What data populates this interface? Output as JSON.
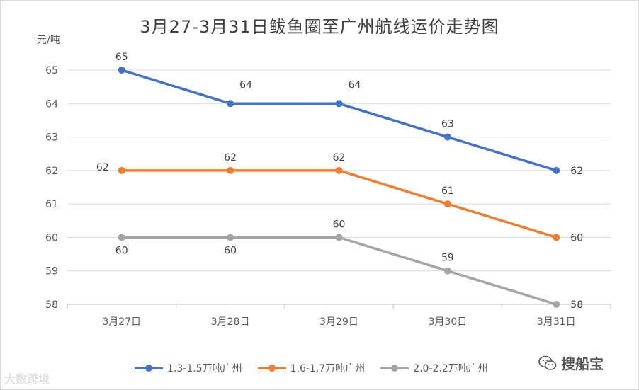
{
  "chart_data": {
    "type": "line",
    "title": "3月27-3月31日鲅鱼圈至广州航线运价走势图",
    "ylabel": "元/吨",
    "xlabel": "",
    "categories": [
      "3月27日",
      "3月28日",
      "3月29日",
      "3月30日",
      "3月31日"
    ],
    "ylim": [
      58,
      65
    ],
    "yticks": [
      58,
      59,
      60,
      61,
      62,
      63,
      64,
      65
    ],
    "grid": true,
    "legend_position": "bottom",
    "series": [
      {
        "name": "1.3-1.5万吨广州",
        "values": [
          65,
          64,
          64,
          63,
          62
        ],
        "color": "#4472c4"
      },
      {
        "name": "1.6-1.7万吨广州",
        "values": [
          62,
          62,
          62,
          61,
          60
        ],
        "color": "#ed7d31"
      },
      {
        "name": "2.0-2.2万吨广州",
        "values": [
          60,
          60,
          60,
          59,
          58
        ],
        "color": "#a5a5a5"
      }
    ]
  },
  "watermarks": {
    "left_text": "大数跨境",
    "right_text": "搜船宝",
    "right_icon": "wechat-icon"
  }
}
